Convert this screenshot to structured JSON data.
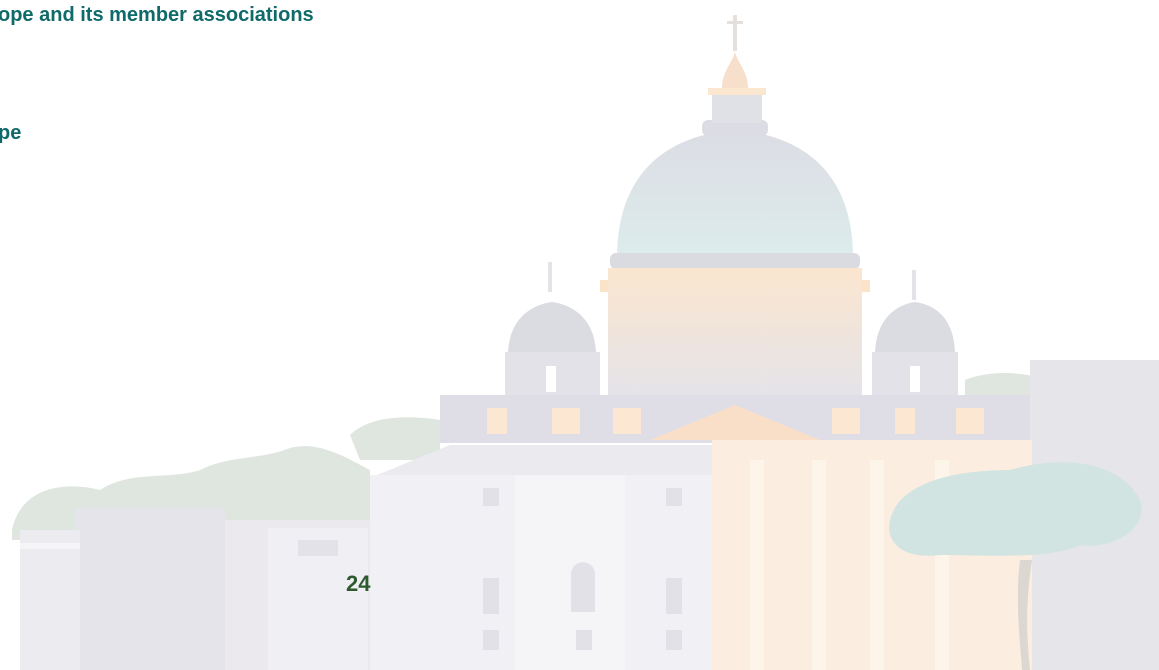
{
  "heading": "ope and its member associations",
  "subheading": "pe",
  "page_number": "24"
}
